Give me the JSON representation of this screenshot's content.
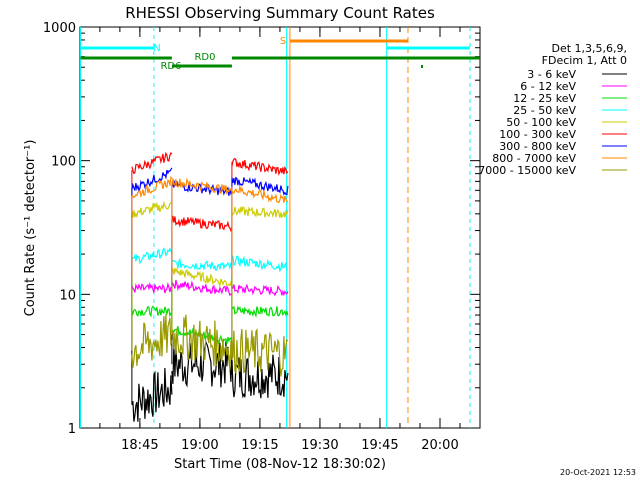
{
  "chart_data": {
    "type": "line",
    "title": "RHESSI Observing Summary Count Rates",
    "xlabel": "Start Time (08-Nov-12 18:30:02)",
    "ylabel": "Count Rate (s⁻¹ detector⁻¹)",
    "y_scale": "log",
    "ylim": [
      1,
      1000
    ],
    "xlim": [
      "18:30:02",
      "20:10:00"
    ],
    "x_ticks": [
      "18:45",
      "19:00",
      "19:15",
      "19:30",
      "19:45",
      "20:00"
    ],
    "y_ticks": [
      "1",
      "10",
      "100",
      "1000"
    ],
    "legend_header": [
      "Det 1,3,5,6,9,",
      "FDecim 1, Att 0"
    ],
    "legend_position": "right",
    "series": [
      {
        "name": "3 - 6 keV",
        "color": "#000000",
        "segments": [
          {
            "x": [
              "18:43",
              "18:53"
            ],
            "y": [
              1.5,
              2.0
            ]
          },
          {
            "x": [
              "18:53",
              "19:08"
            ],
            "y": [
              3.0,
              3.0
            ]
          },
          {
            "x": [
              "19:08",
              "19:22"
            ],
            "y": [
              2.5,
              2.5
            ]
          }
        ]
      },
      {
        "name": "6 - 12 keV",
        "color": "#ff00ff",
        "segments": [
          {
            "x": [
              "18:43",
              "18:53"
            ],
            "y": [
              11,
              11
            ]
          },
          {
            "x": [
              "18:53",
              "19:08"
            ],
            "y": [
              12,
              10.5
            ]
          },
          {
            "x": [
              "19:08",
              "19:22"
            ],
            "y": [
              11,
              10.5
            ]
          }
        ]
      },
      {
        "name": "12 - 25 keV",
        "color": "#00dd00",
        "segments": [
          {
            "x": [
              "18:43",
              "18:53"
            ],
            "y": [
              7.5,
              7.5
            ]
          },
          {
            "x": [
              "18:53",
              "19:08"
            ],
            "y": [
              5.5,
              4.5
            ]
          },
          {
            "x": [
              "19:08",
              "19:22"
            ],
            "y": [
              7.5,
              7.5
            ]
          }
        ]
      },
      {
        "name": "25 - 50 keV",
        "color": "#00ffff",
        "segments": [
          {
            "x": [
              "18:43",
              "18:53"
            ],
            "y": [
              18,
              21
            ]
          },
          {
            "x": [
              "18:53",
              "19:08"
            ],
            "y": [
              17,
              16
            ]
          },
          {
            "x": [
              "19:08",
              "19:22"
            ],
            "y": [
              18,
              16
            ]
          }
        ]
      },
      {
        "name": "50 - 100 keV",
        "color": "#cccc00",
        "segments": [
          {
            "x": [
              "18:43",
              "18:53"
            ],
            "y": [
              40,
              47
            ]
          },
          {
            "x": [
              "18:53",
              "19:08"
            ],
            "y": [
              15,
              12
            ]
          },
          {
            "x": [
              "19:08",
              "19:22"
            ],
            "y": [
              42,
              40
            ]
          }
        ]
      },
      {
        "name": "100 - 300 keV",
        "color": "#ff0000",
        "segments": [
          {
            "x": [
              "18:43",
              "18:53"
            ],
            "y": [
              85,
              110
            ]
          },
          {
            "x": [
              "18:53",
              "19:08"
            ],
            "y": [
              36,
              32
            ]
          },
          {
            "x": [
              "19:08",
              "19:22"
            ],
            "y": [
              98,
              82
            ]
          }
        ]
      },
      {
        "name": "300 - 800 keV",
        "color": "#0000ff",
        "segments": [
          {
            "x": [
              "18:43",
              "18:53"
            ],
            "y": [
              62,
              82
            ]
          },
          {
            "x": [
              "18:53",
              "19:08"
            ],
            "y": [
              66,
              58
            ]
          },
          {
            "x": [
              "19:08",
              "19:22"
            ],
            "y": [
              72,
              60
            ]
          }
        ]
      },
      {
        "name": "800 - 7000 keV",
        "color": "#ff8800",
        "segments": [
          {
            "x": [
              "18:43",
              "18:53"
            ],
            "y": [
              55,
              70
            ]
          },
          {
            "x": [
              "18:53",
              "19:08"
            ],
            "y": [
              70,
              60
            ]
          },
          {
            "x": [
              "19:08",
              "19:22"
            ],
            "y": [
              62,
              50
            ]
          }
        ]
      },
      {
        "name": "7000 - 15000 keV",
        "color": "#999900",
        "segments": [
          {
            "x": [
              "18:43",
              "18:53"
            ],
            "y": [
              3.8,
              5.0
            ]
          },
          {
            "x": [
              "18:53",
              "19:08"
            ],
            "y": [
              5.0,
              4.0
            ]
          },
          {
            "x": [
              "19:08",
              "19:22"
            ],
            "y": [
              3.8,
              3.6
            ]
          }
        ]
      }
    ],
    "annotations": [
      {
        "label": "N",
        "color": "#00ffff"
      },
      {
        "label": "S",
        "color": "#ff8800"
      },
      {
        "label": "RD0",
        "color": "#008800"
      },
      {
        "label": "RD6",
        "color": "#008800"
      }
    ]
  },
  "timestamp": "20-Oct-2021 12:53"
}
